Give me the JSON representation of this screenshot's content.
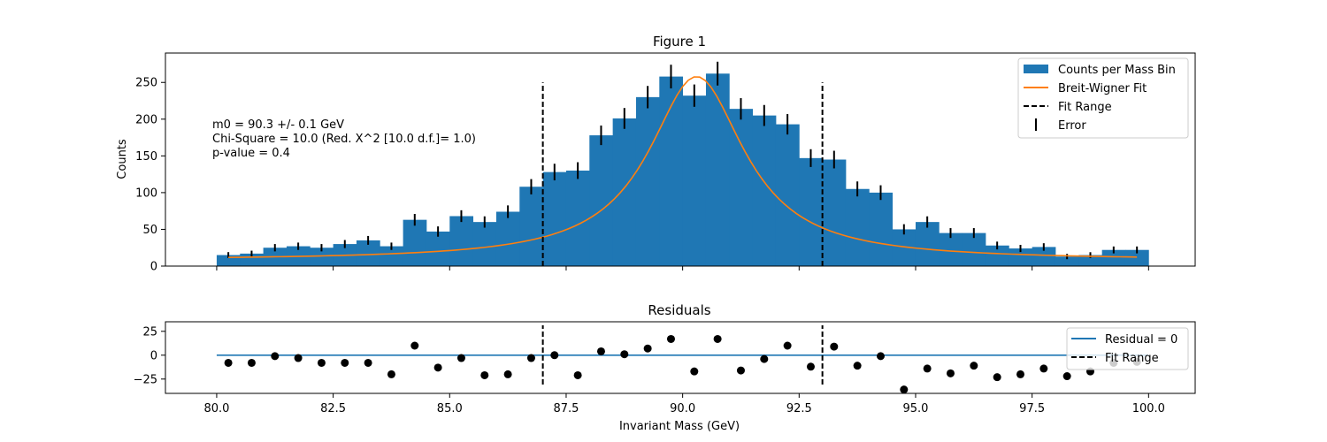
{
  "colors": {
    "bars": "#1f77b4",
    "fit": "#ff7f0e",
    "residual_line": "#1f77b4",
    "fit_range": "#000000",
    "errors": "#000000",
    "points": "#000000"
  },
  "chart_data": [
    {
      "type": "bar",
      "title": "Figure 1",
      "xlabel": "",
      "ylabel": "Counts",
      "xlim": [
        78.9,
        101.0
      ],
      "ylim": [
        0,
        290
      ],
      "xticks": [
        80.0,
        82.5,
        85.0,
        87.5,
        90.0,
        92.5,
        95.0,
        97.5,
        100.0
      ],
      "xtick_labels_visible": false,
      "yticks": [
        0,
        50,
        100,
        150,
        200,
        250
      ],
      "bin_edges": [
        80.0,
        100.0
      ],
      "bin_width": 0.5,
      "counts": [
        15,
        17,
        25,
        27,
        25,
        30,
        35,
        27,
        63,
        47,
        68,
        60,
        74,
        108,
        128,
        130,
        178,
        201,
        230,
        258,
        232,
        262,
        214,
        205,
        193,
        147,
        145,
        105,
        100,
        50,
        60,
        45,
        45,
        28,
        24,
        26,
        13,
        15,
        22,
        22
      ],
      "errors": [
        4,
        4,
        5,
        5,
        5,
        5.5,
        6,
        5,
        8,
        7,
        8,
        7.7,
        8.6,
        10.4,
        11.3,
        11.4,
        13.3,
        14.2,
        15.2,
        16.1,
        15.2,
        16.2,
        14.6,
        14.3,
        13.9,
        12.1,
        12,
        10.2,
        10,
        7,
        7.7,
        6.7,
        6.7,
        5.3,
        4.9,
        5.1,
        3.6,
        3.9,
        4.7,
        4.7
      ],
      "fit_curve": {
        "name": "Breit-Wigner Fit",
        "m0": 90.3,
        "gamma": 2.5,
        "peak": 250,
        "x_range": [
          80.25,
          99.75
        ]
      },
      "fit_range": [
        87.0,
        93.0
      ],
      "annotations": [
        "m0 = 90.3 +/- 0.1 GeV",
        "Chi-Square = 10.0 (Red. X^2 [10.0 d.f.]= 1.0)",
        "p-value = 0.4"
      ],
      "legend": {
        "position": "top-right",
        "entries": [
          "Counts per Mass Bin",
          "Breit-Wigner Fit",
          "Fit Range",
          "Error"
        ]
      }
    },
    {
      "type": "scatter",
      "title": "Residuals",
      "xlabel": "Invariant Mass (GeV)",
      "ylabel": "",
      "xlim": [
        78.9,
        101.0
      ],
      "ylim": [
        -40,
        35
      ],
      "xticks": [
        80.0,
        82.5,
        85.0,
        87.5,
        90.0,
        92.5,
        95.0,
        97.5,
        100.0
      ],
      "xtick_labels": [
        "80.0",
        "82.5",
        "85.0",
        "87.5",
        "90.0",
        "92.5",
        "95.0",
        "97.5",
        "100.0"
      ],
      "yticks": [
        25,
        0,
        -25
      ],
      "x": [
        80.25,
        80.75,
        81.25,
        81.75,
        82.25,
        82.75,
        83.25,
        83.75,
        84.25,
        84.75,
        85.25,
        85.75,
        86.25,
        86.75,
        87.25,
        87.75,
        88.25,
        88.75,
        89.25,
        89.75,
        90.25,
        90.75,
        91.25,
        91.75,
        92.25,
        92.75,
        93.25,
        93.75,
        94.25,
        94.75,
        95.25,
        95.75,
        96.25,
        96.75,
        97.25,
        97.75,
        98.25,
        98.75,
        99.25,
        99.75
      ],
      "y": [
        -8,
        -8,
        -1,
        -3,
        -8,
        -8,
        -8,
        -20,
        10,
        -13,
        -3,
        -21,
        -20,
        -3,
        0,
        -21,
        4,
        1,
        7,
        17,
        -17,
        17,
        -16,
        -4,
        10,
        -12,
        9,
        -11,
        -1,
        -36,
        -14,
        -19,
        -11,
        -23,
        -20,
        -14,
        -22,
        -17,
        -8,
        -7
      ],
      "zero_line": {
        "name": "Residual = 0",
        "y": 0,
        "x_range": [
          80.0,
          100.0
        ]
      },
      "fit_range": [
        87.0,
        93.0
      ],
      "legend": {
        "position": "top-right",
        "entries": [
          "Residual = 0",
          "Fit Range"
        ]
      }
    }
  ]
}
